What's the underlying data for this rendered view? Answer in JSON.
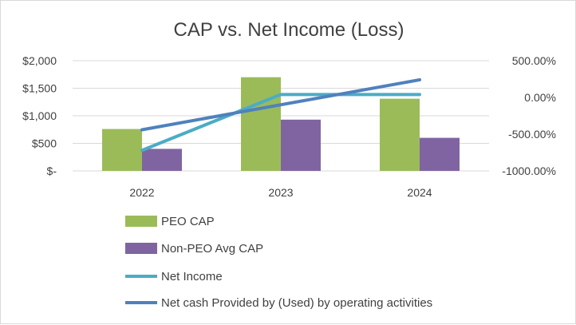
{
  "chart_data": {
    "type": "bar",
    "title": "CAP vs. Net Income (Loss)",
    "categories": [
      "2022",
      "2023",
      "2024"
    ],
    "y_left": {
      "ticks": [
        0,
        500,
        1000,
        1500,
        2000
      ],
      "tick_labels": [
        "$-",
        "$500",
        "$1,000",
        "$1,500",
        "$2,000"
      ],
      "ylim": [
        0,
        2000
      ]
    },
    "y_right": {
      "ticks": [
        -1000,
        -500,
        0,
        500
      ],
      "tick_labels": [
        "-1000.00%",
        "-500.00%",
        "0.00%",
        "500.00%"
      ],
      "ylim": [
        -1000,
        500
      ]
    },
    "grid": true,
    "legend_position": "bottom",
    "series": [
      {
        "name": "PEO CAP",
        "kind": "bar",
        "axis": "left",
        "color": "#9bbb59",
        "values": [
          760,
          1700,
          1310
        ]
      },
      {
        "name": "Non-PEO Avg CAP",
        "kind": "bar",
        "axis": "left",
        "color": "#8064a2",
        "values": [
          400,
          930,
          600
        ]
      },
      {
        "name": "Net Income",
        "kind": "line",
        "axis": "right",
        "color": "#4bacc6",
        "values": [
          -720,
          40,
          40
        ]
      },
      {
        "name": "Net cash Provided by (Used) by operating activities",
        "kind": "line",
        "axis": "right",
        "color": "#4f81bd",
        "values": [
          -440,
          -100,
          240
        ]
      }
    ]
  }
}
